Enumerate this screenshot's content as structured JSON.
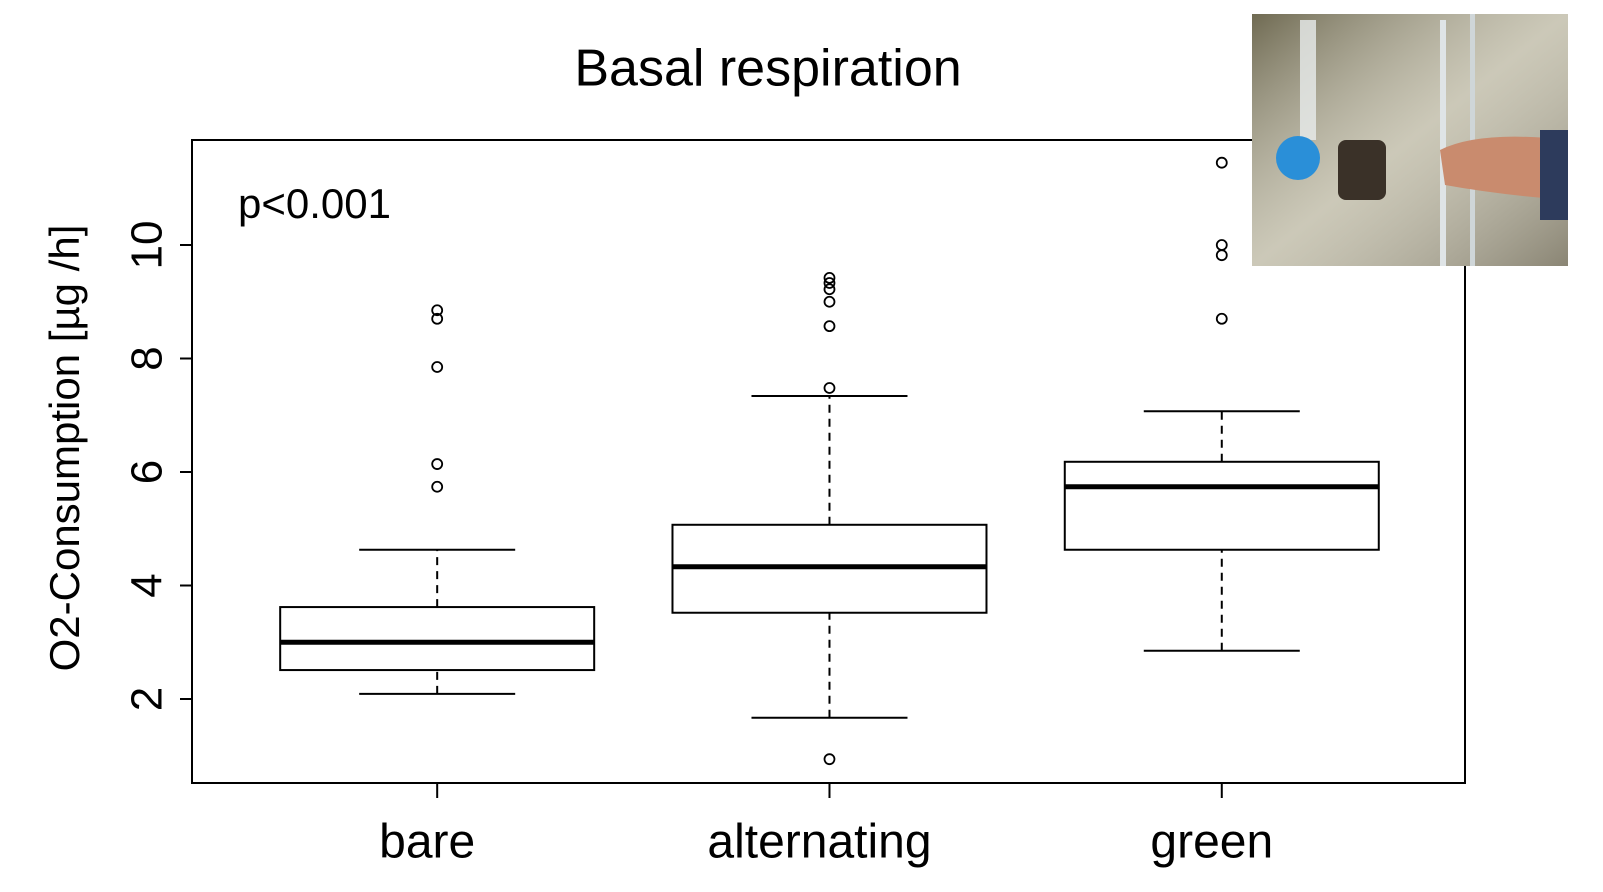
{
  "chart_data": {
    "type": "box",
    "title": "Basal respiration",
    "annotation": "p<0.001",
    "y_label": "O2-Consumption [µg /h]",
    "categories": [
      "bare",
      "alternating",
      "green"
    ],
    "whisker_low": [
      2.09,
      1.67,
      2.85
    ],
    "q1": [
      2.51,
      3.52,
      4.63
    ],
    "median": [
      3.0,
      4.33,
      5.74
    ],
    "q3": [
      3.62,
      5.07,
      6.18
    ],
    "whisker_high": [
      4.63,
      7.34,
      7.07
    ],
    "outliers": [
      [
        5.74,
        6.14,
        7.85,
        8.7,
        8.85
      ],
      [
        0.94,
        7.48,
        8.57,
        9.0,
        9.22,
        9.33,
        9.42
      ],
      [
        8.7,
        9.82,
        10.0,
        11.45
      ]
    ],
    "color": "#000000",
    "ylim": [
      0.52,
      11.85
    ],
    "yticks": [
      2,
      4,
      6,
      8,
      10
    ]
  }
}
